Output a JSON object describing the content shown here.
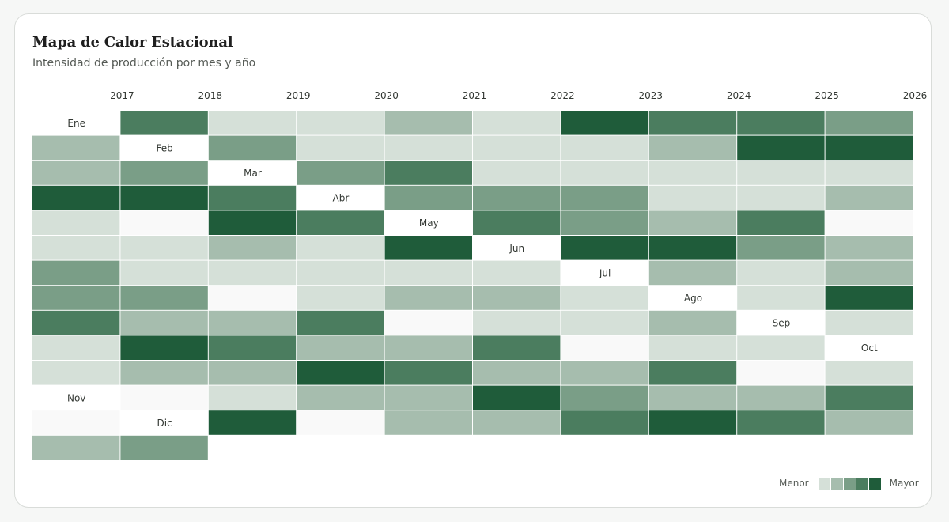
{
  "title": "Mapa de Calor Estacional",
  "subtitle": "Intensidad de producción por mes y año",
  "colors": {
    "level1": "#d5e0d8",
    "level2": "#a6bdae",
    "level3": "#7a9e87",
    "level4": "#4b7d5f",
    "level5": "#1f5c3a",
    "empty": "#f9f9f9",
    "label_cell": "#ffffff"
  },
  "chart_data": {
    "type": "heatmap",
    "years": [
      "2017",
      "2018",
      "2019",
      "2020",
      "2021",
      "2022",
      "2023",
      "2024",
      "2025",
      "2026"
    ],
    "months": [
      "Ene",
      "Feb",
      "Mar",
      "Abr",
      "May",
      "Jun",
      "Jul",
      "Ago",
      "Sep",
      "Oct",
      "Nov",
      "Dic"
    ],
    "legend": {
      "low_label": "Menor",
      "high_label": "Mayor",
      "levels": [
        1,
        2,
        3,
        4,
        5
      ]
    },
    "levels": [
      [
        4,
        3,
        3,
        3,
        4,
        5,
        2,
        1,
        1,
        1,
        null,
        5
      ],
      [
        1,
        1,
        4,
        3,
        3,
        5,
        1,
        5,
        1,
        2,
        1,
        null
      ],
      [
        1,
        1,
        1,
        3,
        2,
        3,
        2,
        4,
        5,
        2,
        2,
        2
      ],
      [
        2,
        1,
        1,
        1,
        4,
        2,
        3,
        2,
        4,
        5,
        2,
        2
      ],
      [
        1,
        1,
        1,
        1,
        null,
        3,
        3,
        2,
        2,
        4,
        5,
        4
      ],
      [
        5,
        2,
        1,
        2,
        1,
        1,
        null,
        4,
        2,
        2,
        3,
        5
      ],
      [
        4,
        5,
        1,
        1,
        1,
        1,
        1,
        null,
        4,
        2,
        2,
        4
      ],
      [
        4,
        5,
        5,
        null,
        2,
        1,
        2,
        1,
        null,
        4,
        2,
        2
      ],
      [
        3,
        2,
        5,
        5,
        1,
        1,
        2,
        1,
        1,
        null,
        4,
        2
      ],
      [
        2,
        3,
        4,
        4,
        5,
        1,
        1,
        2,
        1,
        1,
        null,
        3
      ]
    ]
  }
}
